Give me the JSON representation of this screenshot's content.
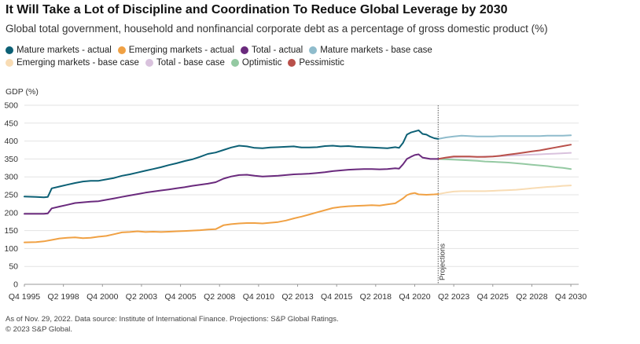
{
  "title": "It Will Take a Lot of Discipline and Coordination To Reduce Global Leverage by 2030",
  "subtitle": "Global total government, household and nonfinancial corporate debt as a percentage of gross domestic product (%)",
  "footnote": "As of Nov. 29, 2022. Data source: Institute of International Finance. Projections: S&P Global Ratings.",
  "copyright": "© 2023 S&P Global.",
  "chart_data": {
    "type": "line",
    "title": "It Will Take a Lot of Discipline and Coordination To Reduce Global Leverage by 2030",
    "ylabel": "GDP (%)",
    "xlabel": "",
    "ylim": [
      0,
      500
    ],
    "yticks": [
      0,
      50,
      100,
      150,
      200,
      250,
      300,
      350,
      400,
      450,
      500
    ],
    "x_tick_labels": [
      "Q4 1995",
      "Q2 1998",
      "Q4 2000",
      "Q2 2003",
      "Q4 2005",
      "Q2 2008",
      "Q4 2010",
      "Q2 2013",
      "Q4 2015",
      "Q2 2018",
      "Q4 2020",
      "Q2 2023",
      "Q4 2025",
      "Q2 2028",
      "Q4 2030"
    ],
    "x_tick_values": [
      1995.75,
      1998.25,
      2000.75,
      2003.25,
      2005.75,
      2008.25,
      2010.75,
      2013.25,
      2015.75,
      2018.25,
      2020.75,
      2023.25,
      2025.75,
      2028.25,
      2030.75
    ],
    "xlim": [
      1995.75,
      2031.25
    ],
    "grid": "horizontal",
    "legend_position": "top",
    "annotation": {
      "text": "Projections",
      "x": 2022.25
    },
    "series": [
      {
        "name": "Mature markets - actual",
        "color": "#0c6075",
        "x": [
          1995.75,
          1996.5,
          1997.0,
          1997.25,
          1997.5,
          1998.0,
          1998.5,
          1999.0,
          1999.5,
          2000.0,
          2000.5,
          2001.0,
          2001.5,
          2002.0,
          2002.5,
          2003.0,
          2003.5,
          2004.0,
          2004.5,
          2005.0,
          2005.5,
          2006.0,
          2006.5,
          2007.0,
          2007.5,
          2008.0,
          2008.5,
          2009.0,
          2009.5,
          2010.0,
          2010.5,
          2011.0,
          2011.5,
          2012.0,
          2012.5,
          2013.0,
          2013.5,
          2014.0,
          2014.5,
          2015.0,
          2015.5,
          2016.0,
          2016.5,
          2017.0,
          2017.5,
          2018.0,
          2018.5,
          2019.0,
          2019.5,
          2019.75,
          2020.0,
          2020.25,
          2020.5,
          2020.75,
          2021.0,
          2021.25,
          2021.5,
          2021.75,
          2022.0,
          2022.25
        ],
        "y": [
          245,
          244,
          243,
          244,
          268,
          273,
          278,
          283,
          287,
          289,
          289,
          293,
          297,
          303,
          307,
          312,
          317,
          322,
          327,
          333,
          338,
          344,
          349,
          356,
          364,
          368,
          375,
          382,
          387,
          385,
          381,
          380,
          382,
          383,
          384,
          385,
          382,
          382,
          383,
          386,
          387,
          385,
          386,
          384,
          383,
          382,
          381,
          380,
          383,
          381,
          395,
          418,
          424,
          427,
          430,
          420,
          418,
          412,
          408,
          406
        ]
      },
      {
        "name": "Emerging markets - actual",
        "color": "#f0a144",
        "x": [
          1995.75,
          1996.5,
          1997.0,
          1997.5,
          1998.0,
          1998.5,
          1999.0,
          1999.5,
          2000.0,
          2000.5,
          2001.0,
          2001.5,
          2002.0,
          2002.5,
          2003.0,
          2003.5,
          2004.0,
          2004.5,
          2005.0,
          2005.5,
          2006.0,
          2006.5,
          2007.0,
          2007.5,
          2008.0,
          2008.5,
          2009.0,
          2009.5,
          2010.0,
          2010.5,
          2011.0,
          2011.5,
          2012.0,
          2012.5,
          2013.0,
          2013.5,
          2014.0,
          2014.5,
          2015.0,
          2015.5,
          2016.0,
          2016.5,
          2017.0,
          2017.5,
          2018.0,
          2018.5,
          2019.0,
          2019.5,
          2020.0,
          2020.25,
          2020.5,
          2020.75,
          2021.0,
          2021.5,
          2022.0,
          2022.25
        ],
        "y": [
          117,
          118,
          120,
          124,
          128,
          130,
          131,
          129,
          130,
          133,
          135,
          140,
          145,
          146,
          148,
          146,
          147,
          146,
          147,
          148,
          149,
          150,
          151,
          153,
          154,
          165,
          168,
          170,
          171,
          171,
          170,
          172,
          174,
          178,
          184,
          189,
          195,
          201,
          207,
          213,
          216,
          218,
          219,
          220,
          221,
          220,
          223,
          226,
          240,
          249,
          253,
          255,
          251,
          250,
          251,
          252
        ]
      },
      {
        "name": "Total - actual",
        "color": "#6a2a7d",
        "x": [
          1995.75,
          1996.5,
          1997.0,
          1997.25,
          1997.5,
          1998.0,
          1998.5,
          1999.0,
          1999.5,
          2000.0,
          2000.5,
          2001.0,
          2001.5,
          2002.0,
          2002.5,
          2003.0,
          2003.5,
          2004.0,
          2004.5,
          2005.0,
          2005.5,
          2006.0,
          2006.5,
          2007.0,
          2007.5,
          2008.0,
          2008.5,
          2009.0,
          2009.5,
          2010.0,
          2010.5,
          2011.0,
          2011.5,
          2012.0,
          2012.5,
          2013.0,
          2013.5,
          2014.0,
          2014.5,
          2015.0,
          2015.5,
          2016.0,
          2016.5,
          2017.0,
          2017.5,
          2018.0,
          2018.5,
          2019.0,
          2019.5,
          2019.75,
          2020.0,
          2020.25,
          2020.5,
          2020.75,
          2021.0,
          2021.25,
          2021.5,
          2021.75,
          2022.0,
          2022.25
        ],
        "y": [
          197,
          197,
          197,
          198,
          212,
          217,
          222,
          227,
          229,
          231,
          232,
          236,
          240,
          244,
          248,
          252,
          256,
          259,
          262,
          265,
          268,
          271,
          275,
          278,
          281,
          285,
          295,
          301,
          305,
          306,
          303,
          301,
          302,
          303,
          305,
          307,
          308,
          309,
          311,
          313,
          316,
          318,
          320,
          321,
          322,
          322,
          321,
          322,
          324,
          323,
          335,
          350,
          356,
          361,
          363,
          354,
          352,
          350,
          350,
          350
        ]
      },
      {
        "name": "Mature markets - base case",
        "color": "#8fbccc",
        "x": [
          2022.25,
          2022.75,
          2023.25,
          2023.75,
          2024.25,
          2024.75,
          2025.25,
          2025.75,
          2026.25,
          2026.75,
          2027.25,
          2027.75,
          2028.25,
          2028.75,
          2029.25,
          2029.75,
          2030.25,
          2030.75
        ],
        "y": [
          406,
          410,
          413,
          415,
          414,
          413,
          413,
          413,
          414,
          414,
          414,
          414,
          414,
          414,
          415,
          415,
          415,
          416
        ]
      },
      {
        "name": "Emerging markets - base case",
        "color": "#f8dcb4",
        "x": [
          2022.25,
          2022.75,
          2023.25,
          2023.75,
          2024.25,
          2024.75,
          2025.25,
          2025.75,
          2026.25,
          2026.75,
          2027.25,
          2027.75,
          2028.25,
          2028.75,
          2029.25,
          2029.75,
          2030.25,
          2030.75
        ],
        "y": [
          252,
          256,
          259,
          260,
          260,
          260,
          260,
          261,
          262,
          263,
          264,
          266,
          268,
          270,
          272,
          273,
          275,
          276
        ]
      },
      {
        "name": "Total - base case",
        "color": "#d9c2dd",
        "x": [
          2022.25,
          2022.75,
          2023.25,
          2023.75,
          2024.25,
          2024.75,
          2025.25,
          2025.75,
          2026.25,
          2026.75,
          2027.25,
          2027.75,
          2028.25,
          2028.75,
          2029.25,
          2029.75,
          2030.25,
          2030.75
        ],
        "y": [
          350,
          352,
          355,
          356,
          356,
          356,
          357,
          357,
          358,
          359,
          360,
          361,
          362,
          363,
          364,
          365,
          366,
          367
        ]
      },
      {
        "name": "Optimistic",
        "color": "#94c9a2",
        "x": [
          2022.25,
          2022.75,
          2023.25,
          2023.75,
          2024.25,
          2024.75,
          2025.25,
          2025.75,
          2026.25,
          2026.75,
          2027.25,
          2027.75,
          2028.25,
          2028.75,
          2029.25,
          2029.75,
          2030.25,
          2030.75
        ],
        "y": [
          350,
          349,
          348,
          347,
          346,
          345,
          343,
          342,
          341,
          340,
          338,
          336,
          334,
          332,
          330,
          327,
          325,
          322
        ]
      },
      {
        "name": "Pessimistic",
        "color": "#b9504a",
        "x": [
          2022.25,
          2022.75,
          2023.25,
          2023.75,
          2024.25,
          2024.75,
          2025.25,
          2025.75,
          2026.25,
          2026.75,
          2027.25,
          2027.75,
          2028.25,
          2028.75,
          2029.25,
          2029.75,
          2030.25,
          2030.75
        ],
        "y": [
          350,
          354,
          357,
          357,
          357,
          356,
          356,
          357,
          359,
          362,
          365,
          368,
          371,
          374,
          378,
          382,
          386,
          390
        ]
      }
    ]
  }
}
